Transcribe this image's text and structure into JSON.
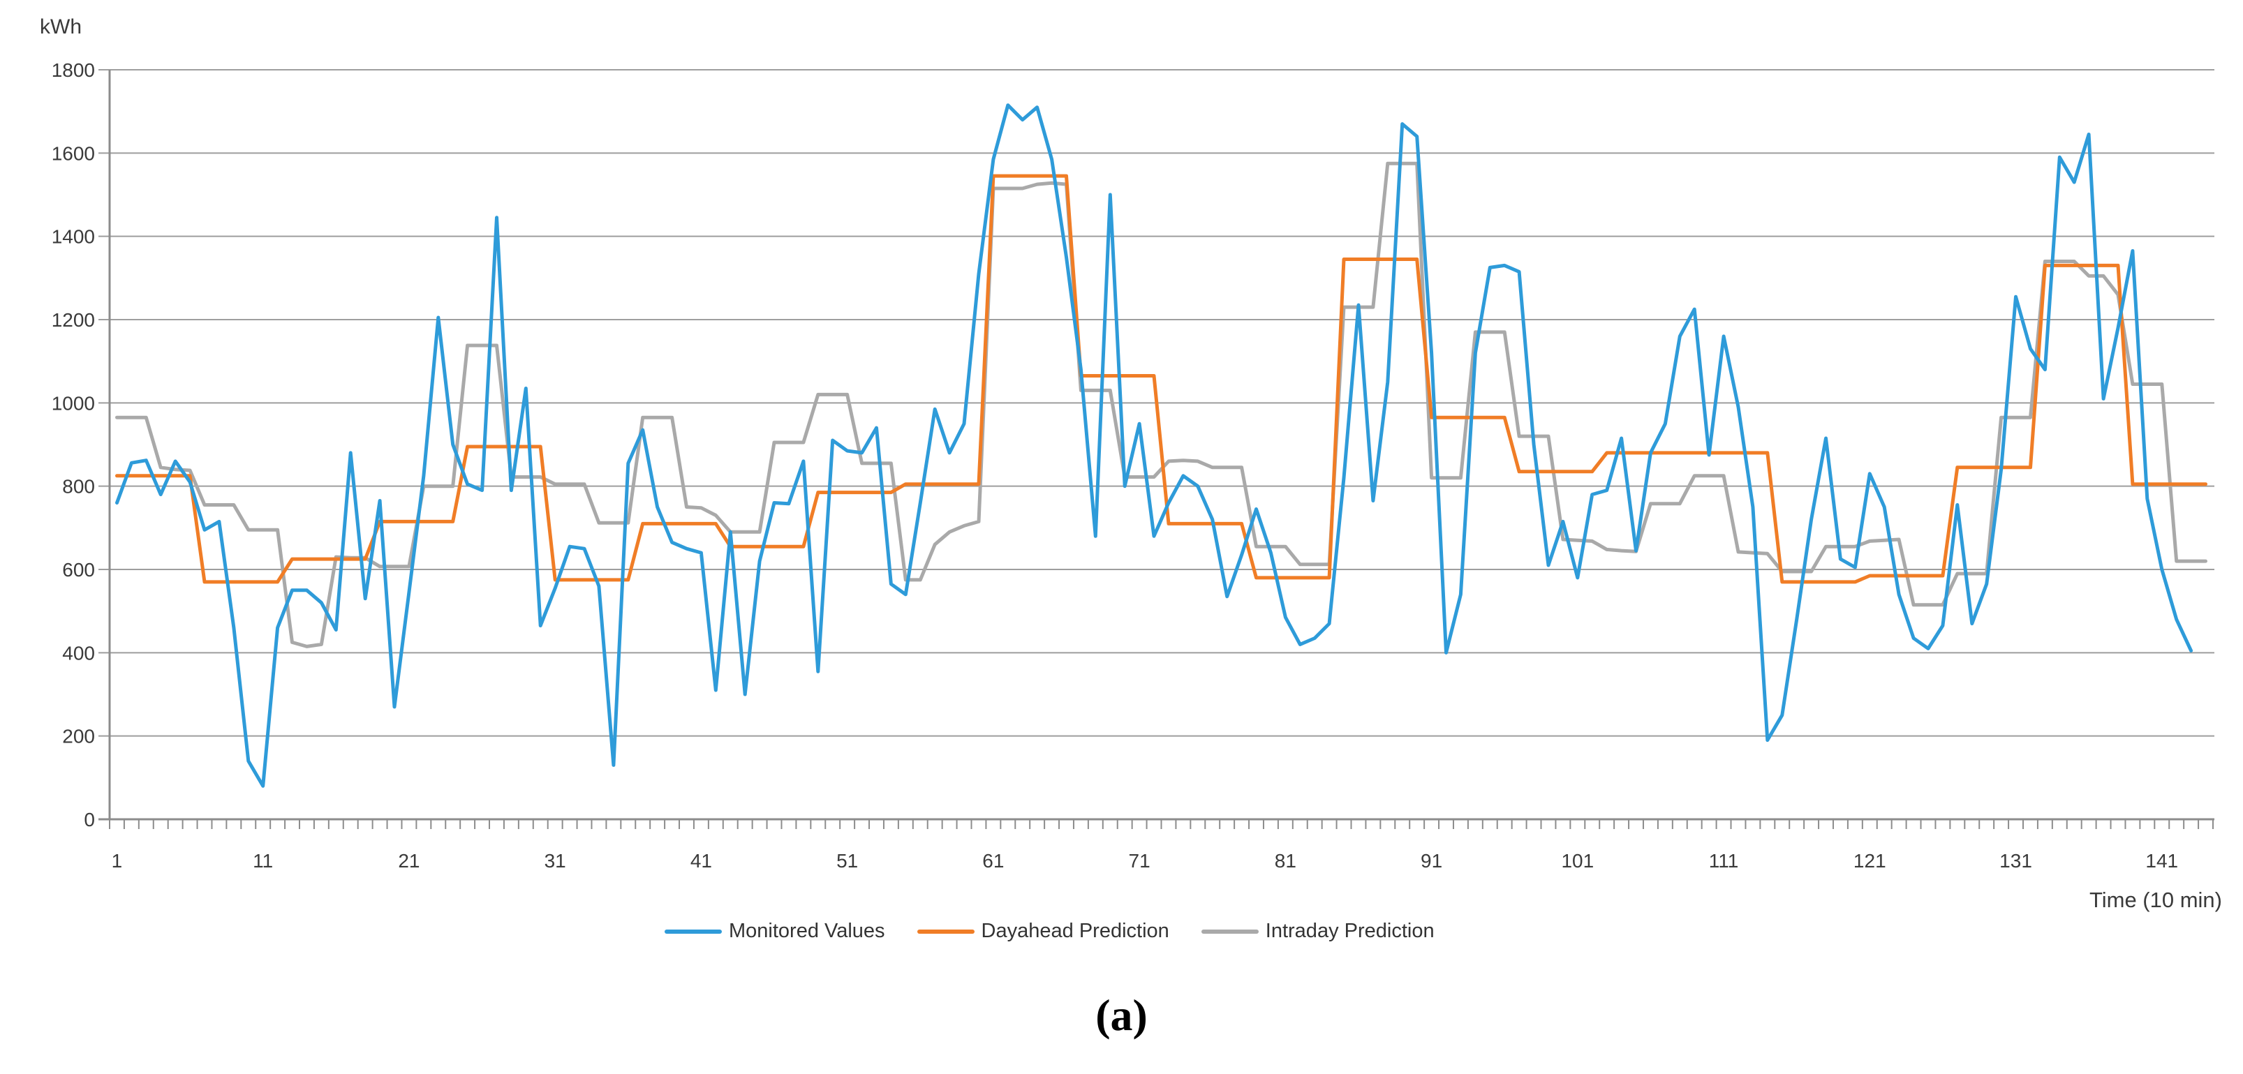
{
  "figure": {
    "caption": "(a)"
  },
  "chart_data": {
    "type": "line",
    "title": "",
    "ylabel": "kWh",
    "xlabel": "Time  (10 min)",
    "ylim": [
      0,
      1800
    ],
    "ytick_step": 200,
    "yticks": [
      0,
      200,
      400,
      600,
      800,
      1000,
      1200,
      1400,
      1600,
      1800
    ],
    "xticks": [
      1,
      11,
      21,
      31,
      41,
      51,
      61,
      71,
      81,
      91,
      101,
      111,
      121,
      131,
      141
    ],
    "x_count": 144,
    "grid": "horizontal",
    "legend_position": "bottom",
    "axis_color": "#8c8c8c",
    "gridline_color": "#9e9e9e",
    "tick_label_color": "#3a3a3a",
    "series": [
      {
        "name": "Monitored Values",
        "color": "#2e9bd9",
        "values": [
          760,
          856,
          862,
          780,
          860,
          810,
          695,
          715,
          460,
          140,
          80,
          460,
          550,
          550,
          520,
          455,
          880,
          530,
          765,
          270,
          545,
          825,
          1205,
          900,
          805,
          790,
          1445,
          790,
          1035,
          465,
          555,
          655,
          650,
          560,
          130,
          855,
          935,
          750,
          665,
          650,
          640,
          310,
          690,
          300,
          620,
          760,
          758,
          860,
          355,
          910,
          885,
          880,
          940,
          565,
          540,
          760,
          985,
          880,
          950,
          1310,
          1585,
          1715,
          1680,
          1710,
          1585,
          1350,
          1080,
          680,
          1500,
          800,
          950,
          680,
          760,
          825,
          800,
          720,
          535,
          635,
          745,
          640,
          485,
          420,
          435,
          470,
          820,
          1235,
          765,
          1050,
          1670,
          1640,
          1120,
          400,
          540,
          1120,
          1325,
          1330,
          1315,
          900,
          610,
          715,
          580,
          780,
          790,
          915,
          645,
          880,
          950,
          1160,
          1225,
          875,
          1160,
          990,
          750,
          190,
          250,
          480,
          720,
          915,
          625,
          605,
          830,
          750,
          540,
          435,
          410,
          465,
          755,
          470,
          565,
          840,
          1255,
          1130,
          1080,
          1590,
          1530,
          1645,
          1010,
          1180,
          1365,
          770,
          600,
          480,
          405
        ]
      },
      {
        "name": "Dayahead Prediction",
        "color": "#f07d26",
        "values": [
          825,
          825,
          825,
          825,
          825,
          825,
          570,
          570,
          570,
          570,
          570,
          570,
          625,
          625,
          625,
          625,
          625,
          625,
          715,
          715,
          715,
          715,
          715,
          715,
          895,
          895,
          895,
          895,
          895,
          895,
          575,
          575,
          575,
          575,
          575,
          575,
          710,
          710,
          710,
          710,
          710,
          710,
          655,
          655,
          655,
          655,
          655,
          655,
          785,
          785,
          785,
          785,
          785,
          785,
          805,
          805,
          805,
          805,
          805,
          805,
          1545,
          1545,
          1545,
          1545,
          1545,
          1545,
          1065,
          1065,
          1065,
          1065,
          1065,
          1065,
          710,
          710,
          710,
          710,
          710,
          710,
          580,
          580,
          580,
          580,
          580,
          580,
          1345,
          1345,
          1345,
          1345,
          1345,
          1345,
          965,
          965,
          965,
          965,
          965,
          965,
          835,
          835,
          835,
          835,
          835,
          835,
          880,
          880,
          880,
          880,
          880,
          880,
          880,
          880,
          880,
          880,
          880,
          880,
          570,
          570,
          570,
          570,
          570,
          570,
          585,
          585,
          585,
          585,
          585,
          585,
          845,
          845,
          845,
          845,
          845,
          845,
          1330,
          1330,
          1330,
          1330,
          1330,
          1330,
          805,
          805,
          805,
          805,
          805,
          805
        ]
      },
      {
        "name": "Intraday Prediction",
        "color": "#a9a9a9",
        "values": [
          965,
          965,
          965,
          845,
          840,
          838,
          755,
          755,
          755,
          695,
          695,
          695,
          425,
          415,
          420,
          630,
          628,
          628,
          607,
          607,
          607,
          800,
          800,
          800,
          1138,
          1138,
          1138,
          822,
          822,
          822,
          805,
          805,
          805,
          712,
          712,
          712,
          965,
          965,
          965,
          750,
          748,
          730,
          690,
          690,
          690,
          905,
          905,
          905,
          1020,
          1020,
          1020,
          855,
          855,
          855,
          575,
          575,
          660,
          690,
          705,
          715,
          1515,
          1515,
          1515,
          1525,
          1528,
          1525,
          1030,
          1030,
          1030,
          822,
          822,
          822,
          860,
          862,
          860,
          845,
          845,
          845,
          655,
          655,
          655,
          612,
          612,
          612,
          1230,
          1230,
          1230,
          1575,
          1575,
          1575,
          820,
          820,
          820,
          1170,
          1170,
          1170,
          920,
          920,
          920,
          672,
          670,
          668,
          648,
          645,
          643,
          758,
          758,
          758,
          825,
          825,
          825,
          642,
          640,
          638,
          595,
          595,
          595,
          655,
          655,
          655,
          668,
          670,
          672,
          515,
          515,
          515,
          590,
          590,
          590,
          965,
          965,
          965,
          1340,
          1340,
          1340,
          1305,
          1305,
          1260,
          1045,
          1045,
          1045,
          620,
          620,
          620
        ]
      }
    ]
  }
}
